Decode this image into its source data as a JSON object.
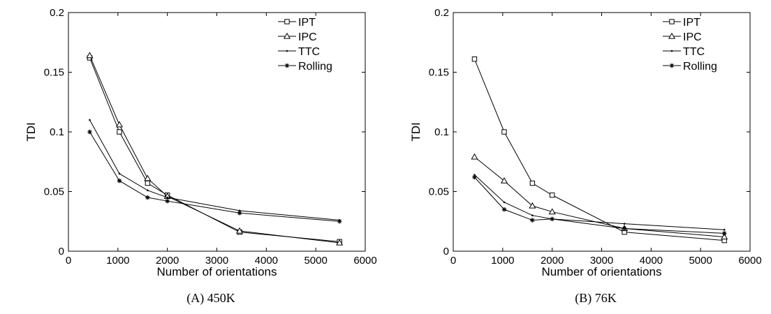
{
  "chart_data": [
    {
      "type": "line",
      "caption_prefix": "(A)",
      "caption_label": "450K",
      "xlabel": "Number of orientations",
      "ylabel": "TDI",
      "xlim": [
        0,
        6000
      ],
      "ylim": [
        0,
        0.2
      ],
      "xticks": [
        "0",
        "1000",
        "2000",
        "3000",
        "4000",
        "5000",
        "6000"
      ],
      "yticks": [
        "0",
        "0.05",
        "0.1",
        "0.15",
        "0.2"
      ],
      "x": [
        430,
        1030,
        1600,
        2000,
        3460,
        5480
      ],
      "legend_position": "top-right",
      "series": [
        {
          "name": "IPT",
          "marker": "square",
          "values": [
            0.162,
            0.1,
            0.057,
            0.047,
            0.016,
            0.008
          ]
        },
        {
          "name": "IPC",
          "marker": "triangle",
          "values": [
            0.164,
            0.106,
            0.061,
            0.046,
            0.017,
            0.007
          ]
        },
        {
          "name": "TTC",
          "marker": "dot",
          "values": [
            0.11,
            0.065,
            0.051,
            0.045,
            0.034,
            0.026
          ]
        },
        {
          "name": "Rolling",
          "marker": "star",
          "values": [
            0.1,
            0.059,
            0.045,
            0.042,
            0.032,
            0.025
          ]
        }
      ]
    },
    {
      "type": "line",
      "caption_prefix": "(B)",
      "caption_label": "76K",
      "xlabel": "Number of orientations",
      "ylabel": "TDI",
      "xlim": [
        0,
        6000
      ],
      "ylim": [
        0,
        0.2
      ],
      "xticks": [
        "0",
        "1000",
        "2000",
        "3000",
        "4000",
        "5000",
        "6000"
      ],
      "yticks": [
        "0",
        "0.05",
        "0.1",
        "0.15",
        "0.2"
      ],
      "x": [
        430,
        1030,
        1600,
        2000,
        3460,
        5480
      ],
      "legend_position": "top-right",
      "series": [
        {
          "name": "IPT",
          "marker": "square",
          "values": [
            0.161,
            0.1,
            0.057,
            0.047,
            0.016,
            0.009
          ]
        },
        {
          "name": "IPC",
          "marker": "triangle",
          "values": [
            0.079,
            0.059,
            0.038,
            0.033,
            0.019,
            0.012
          ]
        },
        {
          "name": "TTC",
          "marker": "dot",
          "values": [
            0.064,
            0.041,
            0.03,
            0.027,
            0.023,
            0.018
          ]
        },
        {
          "name": "Rolling",
          "marker": "star",
          "values": [
            0.062,
            0.035,
            0.026,
            0.027,
            0.019,
            0.015
          ]
        }
      ]
    }
  ]
}
